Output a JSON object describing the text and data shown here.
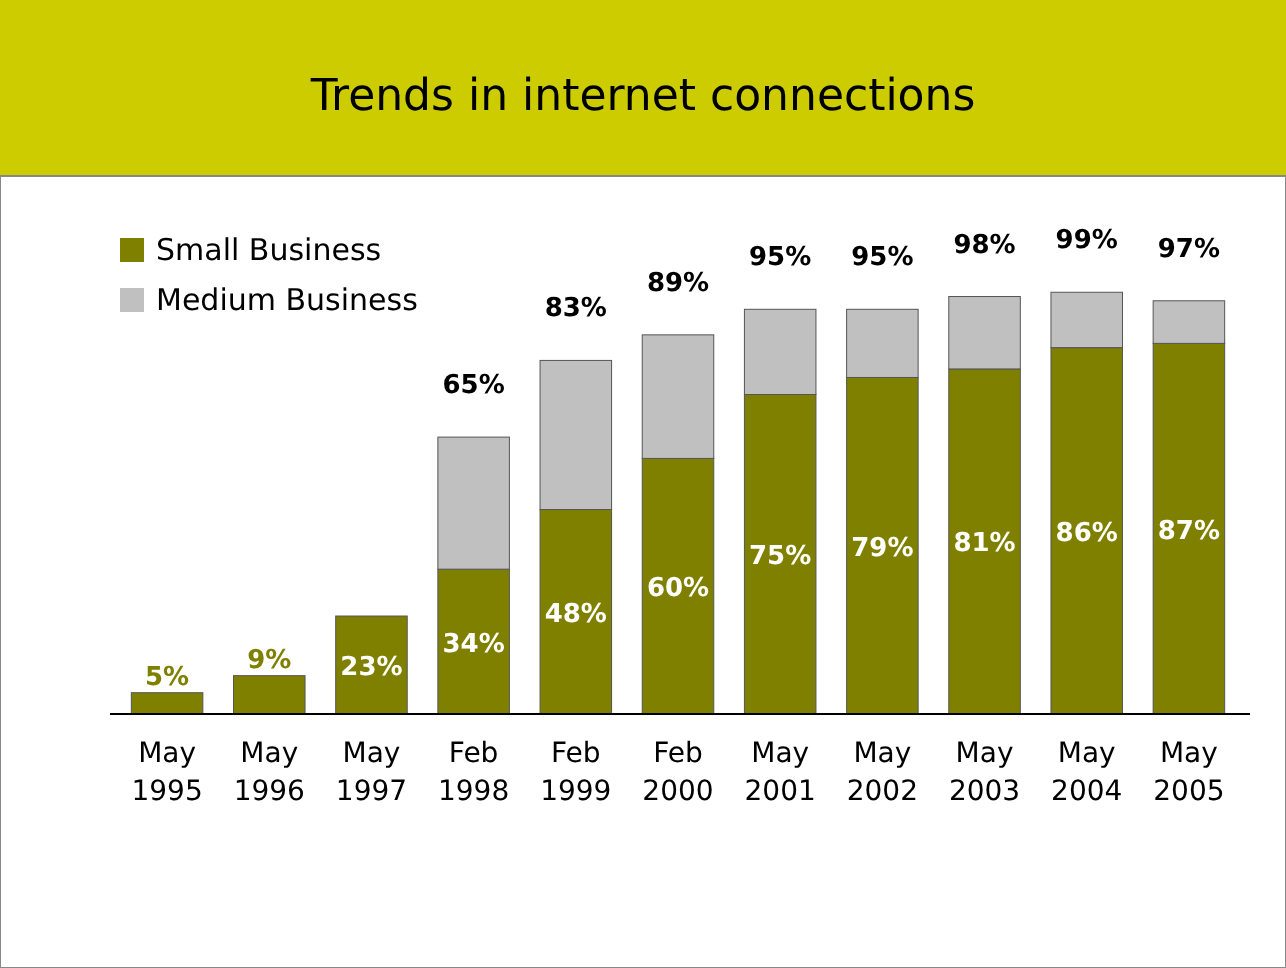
{
  "chart_data": {
    "type": "bar",
    "title": "Trends in internet connections",
    "stacked": true,
    "legend": "top left",
    "categories": [
      "May 1995",
      "May 1996",
      "May 1997",
      "Feb 1998",
      "Feb 1999",
      "Feb 2000",
      "May 2001",
      "May 2002",
      "May 2003",
      "May 2004",
      "May 2005"
    ],
    "series": [
      {
        "name": "Small Business",
        "color": "#808000",
        "values": [
          5,
          9,
          23,
          34,
          48,
          60,
          75,
          79,
          81,
          86,
          87
        ],
        "value_labels": [
          "5%",
          "9%",
          "23%",
          "34%",
          "48%",
          "60%",
          "75%",
          "79%",
          "81%",
          "86%",
          "87%"
        ]
      },
      {
        "name": "Medium Business",
        "color": "#c0c0c0",
        "values": [
          0,
          0,
          0,
          31,
          35,
          29,
          20,
          16,
          17,
          13,
          10
        ]
      }
    ],
    "totals": [
      null,
      null,
      null,
      "65%",
      "83%",
      "89%",
      "95%",
      "95%",
      "98%",
      "99%",
      "97%"
    ]
  }
}
